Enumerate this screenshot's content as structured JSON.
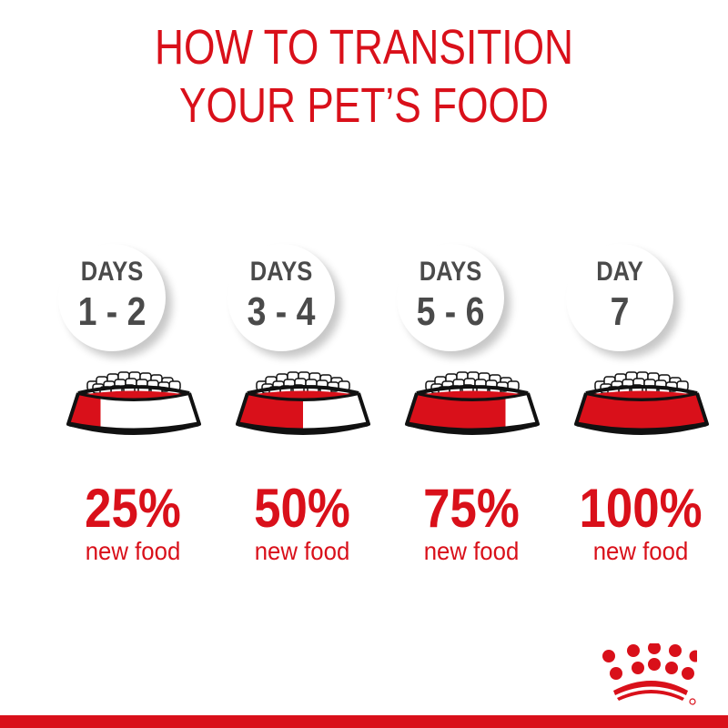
{
  "title": {
    "line1": "HOW TO TRANSITION",
    "line2": "YOUR PET’S FOOD"
  },
  "steps": [
    {
      "label": "DAYS",
      "range": "1 - 2",
      "percent": "25%",
      "caption": "new food",
      "fraction": 0.25
    },
    {
      "label": "DAYS",
      "range": "3 - 4",
      "percent": "50%",
      "caption": "new food",
      "fraction": 0.5
    },
    {
      "label": "DAYS",
      "range": "5 - 6",
      "percent": "75%",
      "caption": "new food",
      "fraction": 0.75
    },
    {
      "label": "DAY",
      "range": "7",
      "percent": "100%",
      "caption": "new food",
      "fraction": 1.0
    }
  ],
  "logo": {
    "name": "crown-logo",
    "text": "Royal Canin"
  },
  "colors": {
    "brand_red": "#d9101a",
    "text_gray": "#4a4a4a"
  }
}
